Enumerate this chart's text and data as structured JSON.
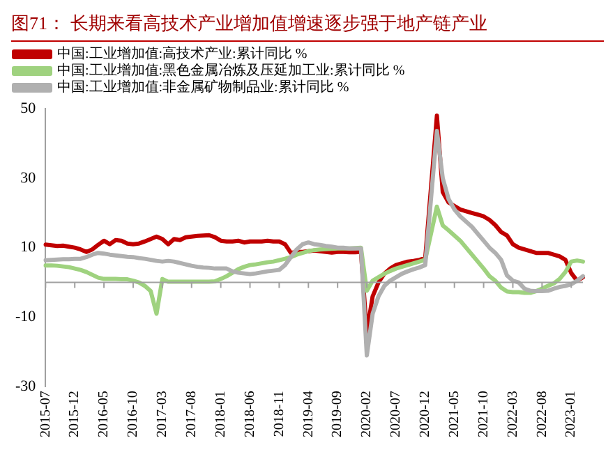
{
  "chart_data": {
    "type": "line",
    "title": "图71：  长期来看高技术产业增加值增速逐步强于地产链产业",
    "categories": [
      "2015-07",
      null,
      null,
      null,
      null,
      "2015-12",
      null,
      null,
      null,
      null,
      "2016-05",
      null,
      null,
      null,
      null,
      "2016-10",
      null,
      null,
      null,
      null,
      "2017-03",
      null,
      null,
      null,
      null,
      "2017-08",
      null,
      null,
      null,
      null,
      "2018-01",
      null,
      null,
      null,
      null,
      "2018-06",
      null,
      null,
      null,
      null,
      "2018-11",
      null,
      null,
      null,
      null,
      "2019-04",
      null,
      null,
      null,
      null,
      "2019-09",
      null,
      null,
      null,
      null,
      "2020-02",
      null,
      null,
      null,
      null,
      "2020-07",
      null,
      null,
      null,
      null,
      "2020-12",
      null,
      null,
      null,
      null,
      "2021-05",
      null,
      null,
      null,
      null,
      "2021-10",
      null,
      null,
      null,
      null,
      "2022-03",
      null,
      null,
      null,
      null,
      "2022-08",
      null,
      null,
      null,
      null,
      "2023-01",
      null,
      null
    ],
    "series": [
      {
        "name": "中国:工业增加值:高技术产业:累计同比 %",
        "color": "#c00000",
        "values": [
          10.9,
          10.7,
          10.5,
          10.6,
          10.3,
          10,
          9.5,
          8.8,
          9.5,
          10.8,
          12,
          11,
          12.2,
          12,
          11.2,
          11,
          11.2,
          11.8,
          12.5,
          13.2,
          12.5,
          11,
          12.5,
          12.2,
          13,
          13.2,
          13.4,
          13.5,
          13.6,
          13,
          12,
          11.8,
          11.8,
          12,
          11.5,
          11.8,
          11.8,
          11.8,
          12,
          11.8,
          11.8,
          11,
          8.5,
          8.8,
          8.8,
          9,
          9.2,
          9,
          8.8,
          8.6,
          8.8,
          8.8,
          8.7,
          8.7,
          8.8,
          -14.5,
          -4,
          0,
          2.5,
          4,
          5,
          5.5,
          6,
          6.2,
          6.5,
          7,
          null,
          48,
          26,
          23,
          22,
          21,
          20.5,
          20,
          19.5,
          19,
          18,
          16.5,
          14.5,
          13.5,
          11,
          10,
          9.5,
          9,
          8.5,
          8.5,
          8.5,
          8,
          7.5,
          6.5,
          2.7,
          0.5,
          1.5
        ]
      },
      {
        "name": "中国:工业增加值:黑色金属冶炼及压延加工业:累计同比 %",
        "color": "#9fd27f",
        "values": [
          4.9,
          4.9,
          4.8,
          4.6,
          4.4,
          4,
          3.6,
          3,
          2.2,
          1.4,
          1,
          1,
          1,
          0.9,
          0.9,
          0.5,
          0,
          -1,
          -2.5,
          -9,
          1,
          0.2,
          0.2,
          0.2,
          0.2,
          0.2,
          0.2,
          0.2,
          0.2,
          0.3,
          1,
          1.8,
          2.8,
          3.8,
          4.5,
          5,
          5.2,
          5.5,
          5.8,
          6,
          6.4,
          6.8,
          7.3,
          8,
          8.5,
          9,
          9.3,
          9.5,
          9.6,
          9.7,
          9.8,
          9.8,
          9.8,
          9.9,
          10,
          -2.4,
          0.5,
          1.5,
          2.5,
          3.3,
          4,
          4.5,
          5,
          5.5,
          6,
          6.5,
          null,
          21.8,
          16.4,
          15,
          13.5,
          12,
          10,
          8,
          6,
          4,
          1.8,
          0.5,
          -1.5,
          -2.6,
          -2.8,
          -2.8,
          -3,
          -3,
          -2.5,
          -1.8,
          -1,
          -0.3,
          1,
          3,
          6,
          6.3,
          6
        ]
      },
      {
        "name": "中国:工业增加值:非金属矿物制品业:累计同比 %",
        "color": "#b0b0b0",
        "values": [
          6.4,
          6.5,
          6.6,
          6.7,
          6.7,
          6.8,
          6.8,
          7.3,
          8,
          8.5,
          8.3,
          8,
          7.8,
          7.6,
          7.4,
          7.3,
          7,
          6.8,
          6.5,
          6.2,
          6,
          6.2,
          6,
          5.6,
          5.2,
          4.8,
          4.5,
          4.3,
          4.2,
          4,
          4,
          4,
          3.2,
          2.8,
          2.6,
          2.4,
          2.6,
          2.9,
          3.2,
          3.4,
          3.6,
          5,
          7.3,
          9.5,
          11,
          11.5,
          11,
          10.8,
          10.5,
          10.3,
          10,
          10,
          9.8,
          9.8,
          9.8,
          -21,
          -9,
          -4,
          -1,
          0.5,
          1.5,
          2.5,
          3.2,
          3.8,
          4.3,
          5,
          null,
          43.6,
          30,
          24,
          21,
          19,
          17.5,
          16,
          14,
          12,
          10,
          8.5,
          6.5,
          2,
          0.5,
          0,
          -1.8,
          -2.4,
          -2.5,
          -2.5,
          -2.4,
          -1.8,
          -1.3,
          -1,
          -0.5,
          0.5,
          1.8
        ]
      }
    ],
    "ylim": [
      -30,
      50
    ],
    "yticks": [
      -30,
      -10,
      10,
      30,
      50
    ],
    "grid": false,
    "legend": "top left",
    "marker": "none",
    "line_style": "solid"
  }
}
